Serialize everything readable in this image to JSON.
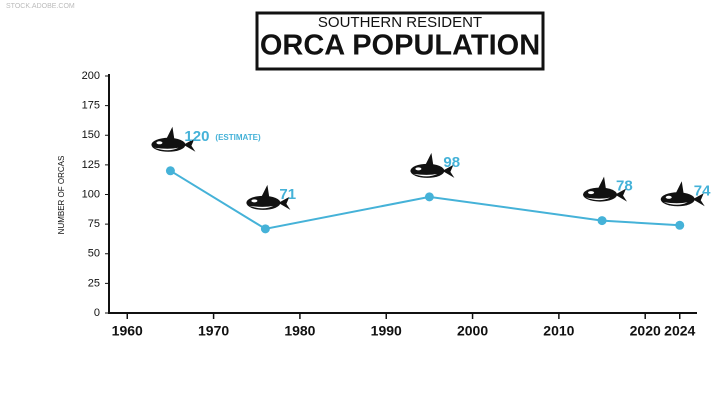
{
  "watermark": "STOCK.ADOBE.COM",
  "chart_data": {
    "type": "line",
    "subtitle": "SOUTHERN RESIDENT",
    "title": "ORCA POPULATION",
    "y_label": "NUMBER OF ORCAS",
    "x": [
      1965,
      1976,
      1995,
      2015,
      2024
    ],
    "values": [
      120,
      71,
      98,
      78,
      74
    ],
    "annotation": "(ESTIMATE)",
    "color": "#45b2d8",
    "xlim": [
      1958,
      2026
    ],
    "xticks": [
      1960,
      1970,
      1980,
      1990,
      2000,
      2010,
      2020,
      2024
    ],
    "ylim": [
      0,
      200
    ],
    "yticks": [
      0,
      25,
      50,
      75,
      100,
      125,
      150,
      175,
      200
    ],
    "grid": false
  }
}
